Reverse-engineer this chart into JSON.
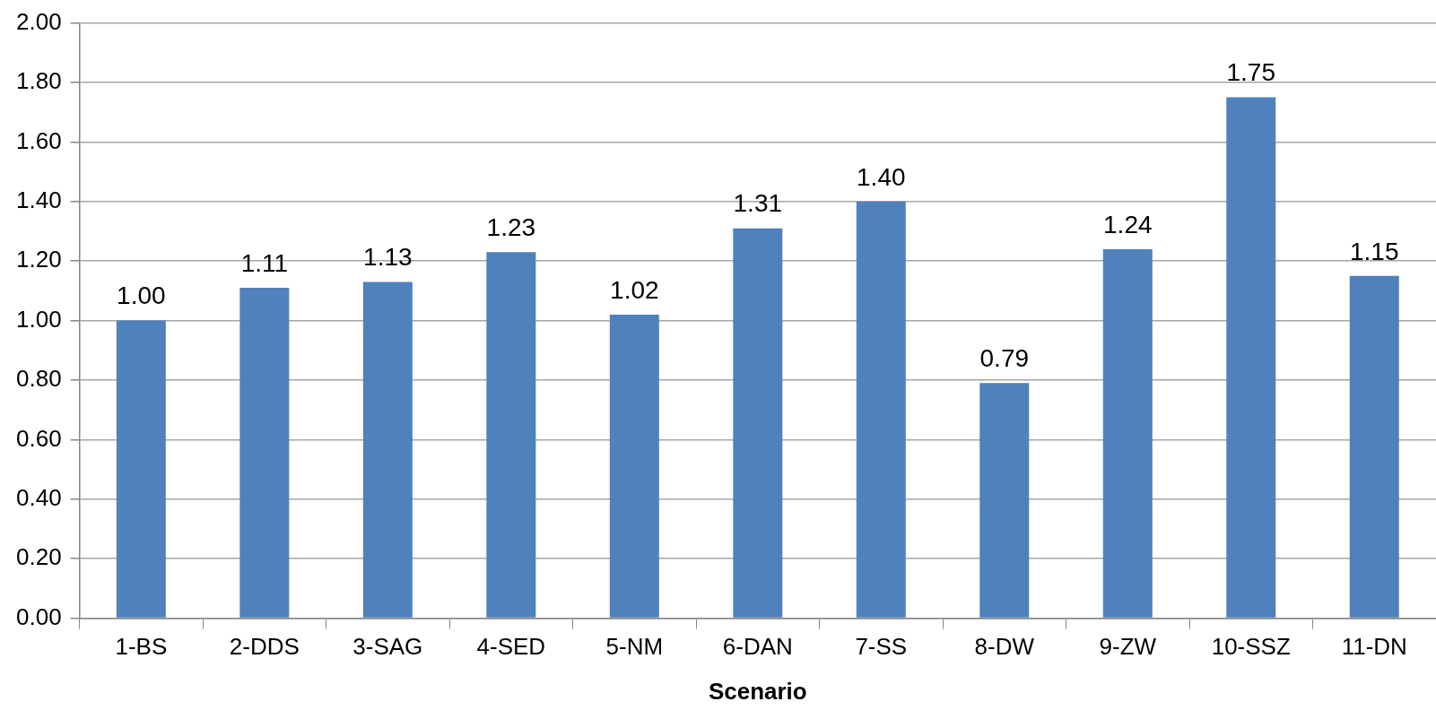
{
  "chart_data": {
    "type": "bar",
    "xlabel": "Scenario",
    "categories": [
      "1-BS",
      "2-DDS",
      "3-SAG",
      "4-SED",
      "5-NM",
      "6-DAN",
      "7-SS",
      "8-DW",
      "9-ZW",
      "10-SSZ",
      "11-DN"
    ],
    "values": [
      1.0,
      1.11,
      1.13,
      1.23,
      1.02,
      1.31,
      1.4,
      0.79,
      1.24,
      1.75,
      1.15
    ],
    "value_labels": [
      "1.00",
      "1.11",
      "1.13",
      "1.23",
      "1.02",
      "1.31",
      "1.40",
      "0.79",
      "1.24",
      "1.75",
      "1.15"
    ],
    "color": "#4f81bd",
    "ylim": [
      0,
      2
    ],
    "yticks": [
      {
        "value": 0,
        "label": "0.00"
      },
      {
        "value": 0.2,
        "label": "0.20"
      },
      {
        "value": 0.4,
        "label": "0.40"
      },
      {
        "value": 0.6,
        "label": "0.60"
      },
      {
        "value": 0.8,
        "label": "0.80"
      },
      {
        "value": 1,
        "label": "1.00"
      },
      {
        "value": 1.2,
        "label": "1.20"
      },
      {
        "value": 1.4,
        "label": "1.40"
      },
      {
        "value": 1.6,
        "label": "1.60"
      },
      {
        "value": 1.8,
        "label": "1.80"
      },
      {
        "value": 2,
        "label": "2.00"
      }
    ],
    "grid": "y"
  }
}
